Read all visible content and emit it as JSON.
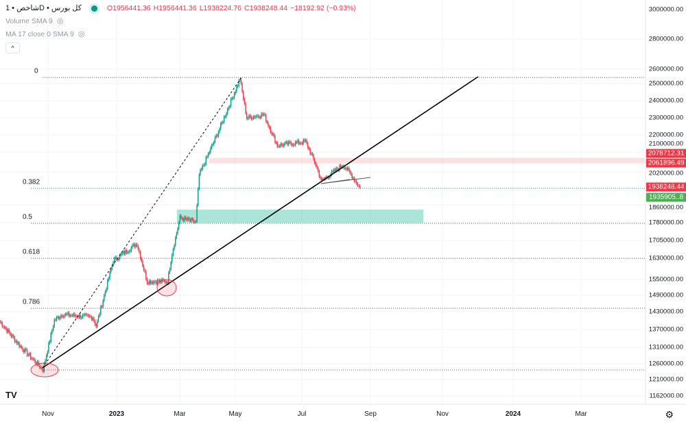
{
  "legend": {
    "symbol": "شاخص • 1D • کل بورس",
    "open": "O1956441.36",
    "high": "H1956441.36",
    "low": "L1938224.76",
    "close": "C1938248.44",
    "change": "−18192.92 (−0.93%)",
    "indicators": [
      "Volume SMA 9",
      "MA 17 close 0 SMA 9"
    ],
    "collapse": "^"
  },
  "price_axis": [
    "3000000.00",
    "2800000.00",
    "2600000.00",
    "2500000.00",
    "2400000.00",
    "2300000.00",
    "2200000.00",
    "2100000.00",
    "2020000.00",
    "1860000.00",
    "1780000.00",
    "1705000.00",
    "1630000.00",
    "1550000.00",
    "1490000.00",
    "1430000.00",
    "1370000.00",
    "1310000.00",
    "1260000.00",
    "1210000.00",
    "1162000.00"
  ],
  "price_tags": [
    {
      "text": "2078712.31",
      "color": "#f23645"
    },
    {
      "text": "2061896.49",
      "color": "#f23645"
    },
    {
      "text": "1938248.44",
      "color": "#f23645"
    },
    {
      "text": "1935905..8",
      "color": "#4caf50"
    }
  ],
  "time_axis": [
    "Nov",
    "2023",
    "Mar",
    "May",
    "Jul",
    "Sep",
    "Nov",
    "2024",
    "Mar"
  ],
  "fib_levels": [
    "0",
    "0.382",
    "0.5",
    "0.618",
    "0.786"
  ],
  "logo": "TV",
  "colors": {
    "up": "#089981",
    "down": "#f23645",
    "zone": "#2bbf9e"
  },
  "chart_data": {
    "type": "candlestick",
    "scale": "log",
    "series_keypoints": [
      [
        0,
        1395000
      ],
      [
        18,
        1313000
      ],
      [
        38,
        1240000
      ],
      [
        48,
        1400000
      ],
      [
        55,
        1420000
      ],
      [
        82,
        1410000
      ],
      [
        85,
        1380000
      ],
      [
        100,
        1620000
      ],
      [
        121,
        1690000
      ],
      [
        130,
        1540000
      ],
      [
        148,
        1540000
      ],
      [
        152,
        1650000
      ],
      [
        159,
        1800000
      ],
      [
        173,
        1780000
      ],
      [
        176,
        2000000
      ],
      [
        194,
        2240000
      ],
      [
        212,
        2530000
      ],
      [
        218,
        2300000
      ],
      [
        233,
        2320000
      ],
      [
        245,
        2150000
      ],
      [
        270,
        2170000
      ],
      [
        279,
        2050000
      ],
      [
        284,
        1970000
      ],
      [
        303,
        2050000
      ],
      [
        309,
        2010000
      ],
      [
        318,
        1938248
      ]
    ]
  }
}
